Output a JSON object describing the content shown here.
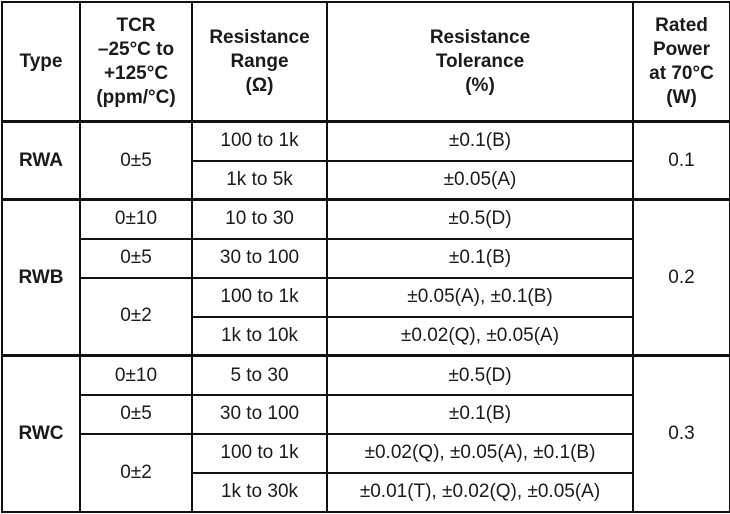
{
  "headers": {
    "type": [
      "Type"
    ],
    "tcr": [
      "TCR",
      "–25°C to",
      "+125°C",
      "(ppm/°C)"
    ],
    "range": [
      "Resistance",
      "Range",
      "(Ω)"
    ],
    "tolerance": [
      "Resistance",
      "Tolerance",
      "(%)"
    ],
    "power": [
      "Rated",
      "Power",
      "at 70°C",
      "(W)"
    ]
  },
  "groups": [
    {
      "type": "RWA",
      "power": "0.1",
      "tcr": [
        "0±5",
        "0±5"
      ],
      "range": [
        "100 to 1k",
        "1k to 5k"
      ],
      "tolerance": [
        "±0.1(B)",
        "±0.05(A)"
      ]
    },
    {
      "type": "RWB",
      "power": "0.2",
      "tcr": [
        "0±10",
        "0±5",
        "0±2",
        "0±2"
      ],
      "range": [
        "10 to 30",
        "30 to 100",
        "100 to 1k",
        "1k to 10k"
      ],
      "tolerance": [
        "±0.5(D)",
        "±0.1(B)",
        "±0.05(A), ±0.1(B)",
        "±0.02(Q), ±0.05(A)"
      ]
    },
    {
      "type": "RWC",
      "power": "0.3",
      "tcr": [
        "0±10",
        "0±5",
        "0±2",
        "0±2"
      ],
      "range": [
        "5 to 30",
        "30 to 100",
        "100 to 1k",
        "1k to 30k"
      ],
      "tolerance": [
        "±0.5(D)",
        "±0.1(B)",
        "±0.02(Q), ±0.05(A), ±0.1(B)",
        "±0.01(T), ±0.02(Q), ±0.05(A)"
      ]
    }
  ]
}
